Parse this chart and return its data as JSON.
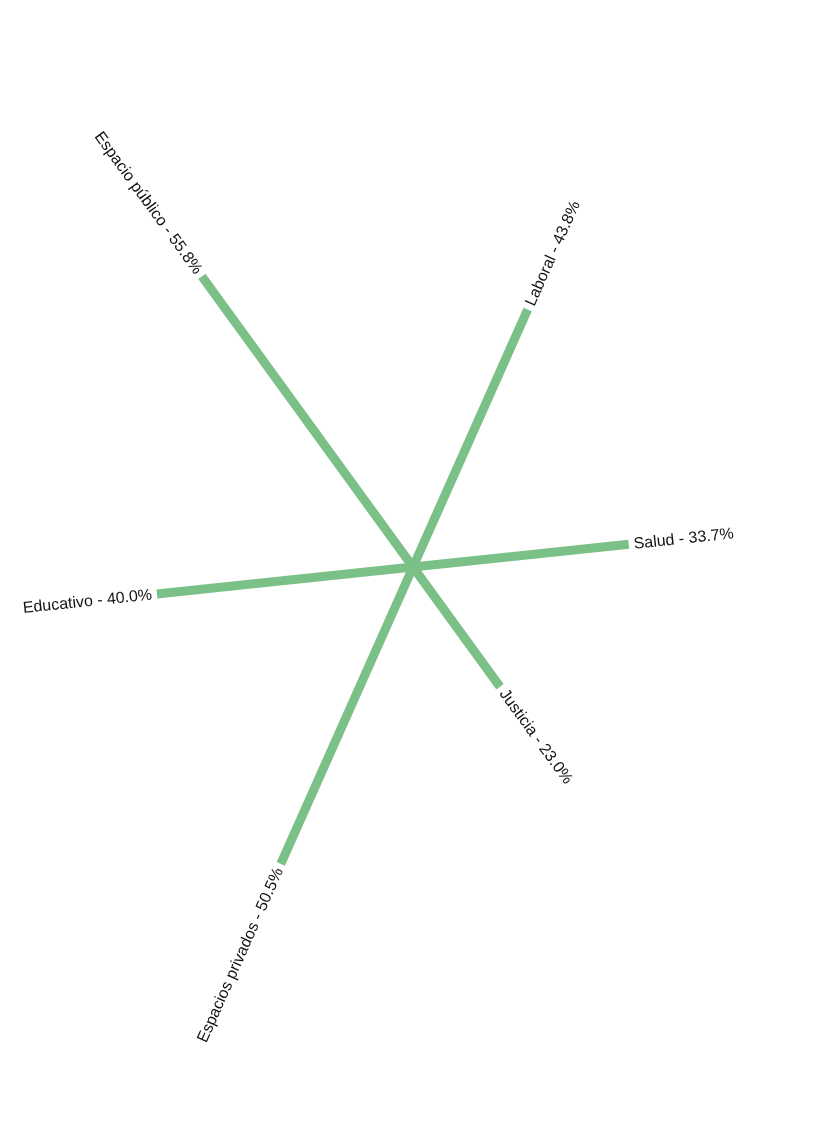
{
  "chart_data": {
    "type": "other",
    "categories": [
      "Espacio público -",
      "Laboral -",
      "Salud -",
      "Justicia -",
      "Espacios privados -",
      "Educativo -"
    ],
    "values": [
      55.8,
      43.8,
      33.7,
      23.0,
      50.5,
      40.0
    ],
    "value_labels": [
      "55.8%",
      "43.8%",
      "33.7%",
      "23.0%",
      "50.5%",
      "40.0%"
    ],
    "color": "#7bc187"
  }
}
